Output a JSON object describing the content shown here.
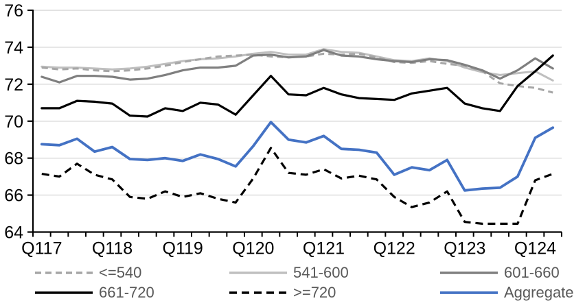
{
  "chart_data": {
    "type": "line",
    "title": "",
    "categories": [
      "Q117",
      "",
      "",
      "",
      "Q118",
      "",
      "",
      "",
      "Q119",
      "",
      "",
      "",
      "Q120",
      "",
      "",
      "",
      "Q121",
      "",
      "",
      "",
      "Q122",
      "",
      "",
      "",
      "Q123",
      "",
      "",
      "",
      "Q124",
      ""
    ],
    "xtick_labels": [
      "Q117",
      "Q118",
      "Q119",
      "Q120",
      "Q121",
      "Q122",
      "Q123",
      "Q124"
    ],
    "ylim": [
      64,
      76
    ],
    "ytick_step": 2,
    "ytick_labels": [
      "64",
      "66",
      "68",
      "70",
      "72",
      "74",
      "76"
    ],
    "grid": "horizontal",
    "legend_position": "bottom",
    "series": [
      {
        "name": "<=540",
        "color": "#A6A6A6",
        "dash": "9 6",
        "width": 3,
        "values": [
          72.9,
          72.8,
          72.85,
          72.75,
          72.7,
          72.75,
          72.85,
          73.0,
          73.2,
          73.35,
          73.5,
          73.55,
          73.6,
          73.5,
          73.45,
          73.5,
          73.65,
          73.6,
          73.65,
          73.45,
          73.2,
          73.15,
          73.25,
          73.1,
          73.0,
          72.7,
          72.05,
          71.9,
          71.8,
          71.55
        ]
      },
      {
        "name": "541-600",
        "color": "#BFBFBF",
        "dash": "",
        "width": 3,
        "values": [
          72.95,
          72.9,
          72.9,
          72.85,
          72.8,
          72.85,
          72.95,
          73.1,
          73.25,
          73.35,
          73.4,
          73.5,
          73.65,
          73.75,
          73.6,
          73.6,
          73.9,
          73.75,
          73.7,
          73.5,
          73.3,
          73.25,
          73.4,
          73.25,
          72.9,
          72.65,
          72.5,
          72.6,
          72.7,
          72.2
        ]
      },
      {
        "name": "601-660",
        "color": "#7F7F7F",
        "dash": "",
        "width": 3.2,
        "values": [
          72.4,
          72.1,
          72.45,
          72.45,
          72.4,
          72.25,
          72.3,
          72.5,
          72.75,
          72.9,
          72.9,
          73.0,
          73.55,
          73.6,
          73.45,
          73.5,
          73.85,
          73.55,
          73.5,
          73.35,
          73.25,
          73.2,
          73.35,
          73.3,
          73.05,
          72.75,
          72.3,
          72.75,
          73.4,
          72.85
        ]
      },
      {
        "name": "661-720",
        "color": "#000000",
        "dash": "",
        "width": 3.2,
        "values": [
          70.7,
          70.7,
          71.1,
          71.05,
          70.95,
          70.3,
          70.25,
          70.7,
          70.55,
          71.0,
          70.9,
          70.35,
          71.4,
          72.45,
          71.45,
          71.4,
          71.8,
          71.45,
          71.25,
          71.2,
          71.15,
          71.5,
          71.65,
          71.8,
          70.95,
          70.7,
          70.55,
          71.9,
          72.7,
          73.55
        ]
      },
      {
        "name": ">=720",
        "color": "#000000",
        "dash": "11 7",
        "width": 3.2,
        "values": [
          67.15,
          67.0,
          67.7,
          67.1,
          66.85,
          65.9,
          65.8,
          66.2,
          65.9,
          66.1,
          65.8,
          65.6,
          66.9,
          68.55,
          67.2,
          67.1,
          67.4,
          66.9,
          67.05,
          66.85,
          65.9,
          65.35,
          65.6,
          66.2,
          64.55,
          64.45,
          64.45,
          64.45,
          66.8,
          67.15
        ]
      },
      {
        "name": "Aggregate",
        "color": "#4472C4",
        "dash": "",
        "width": 3.8,
        "values": [
          68.75,
          68.7,
          69.05,
          68.35,
          68.6,
          67.95,
          67.9,
          68.0,
          67.85,
          68.2,
          67.95,
          67.55,
          68.65,
          69.95,
          69.0,
          68.85,
          69.2,
          68.5,
          68.45,
          68.3,
          67.1,
          67.5,
          67.35,
          67.9,
          66.25,
          66.35,
          66.4,
          67.0,
          69.1,
          69.65
        ]
      }
    ]
  },
  "colors": {
    "background": "#FFFFFF",
    "grid": "#D9D9D9",
    "axis": "#000000",
    "tick_label": "#000000",
    "legend_text": "#595959"
  }
}
